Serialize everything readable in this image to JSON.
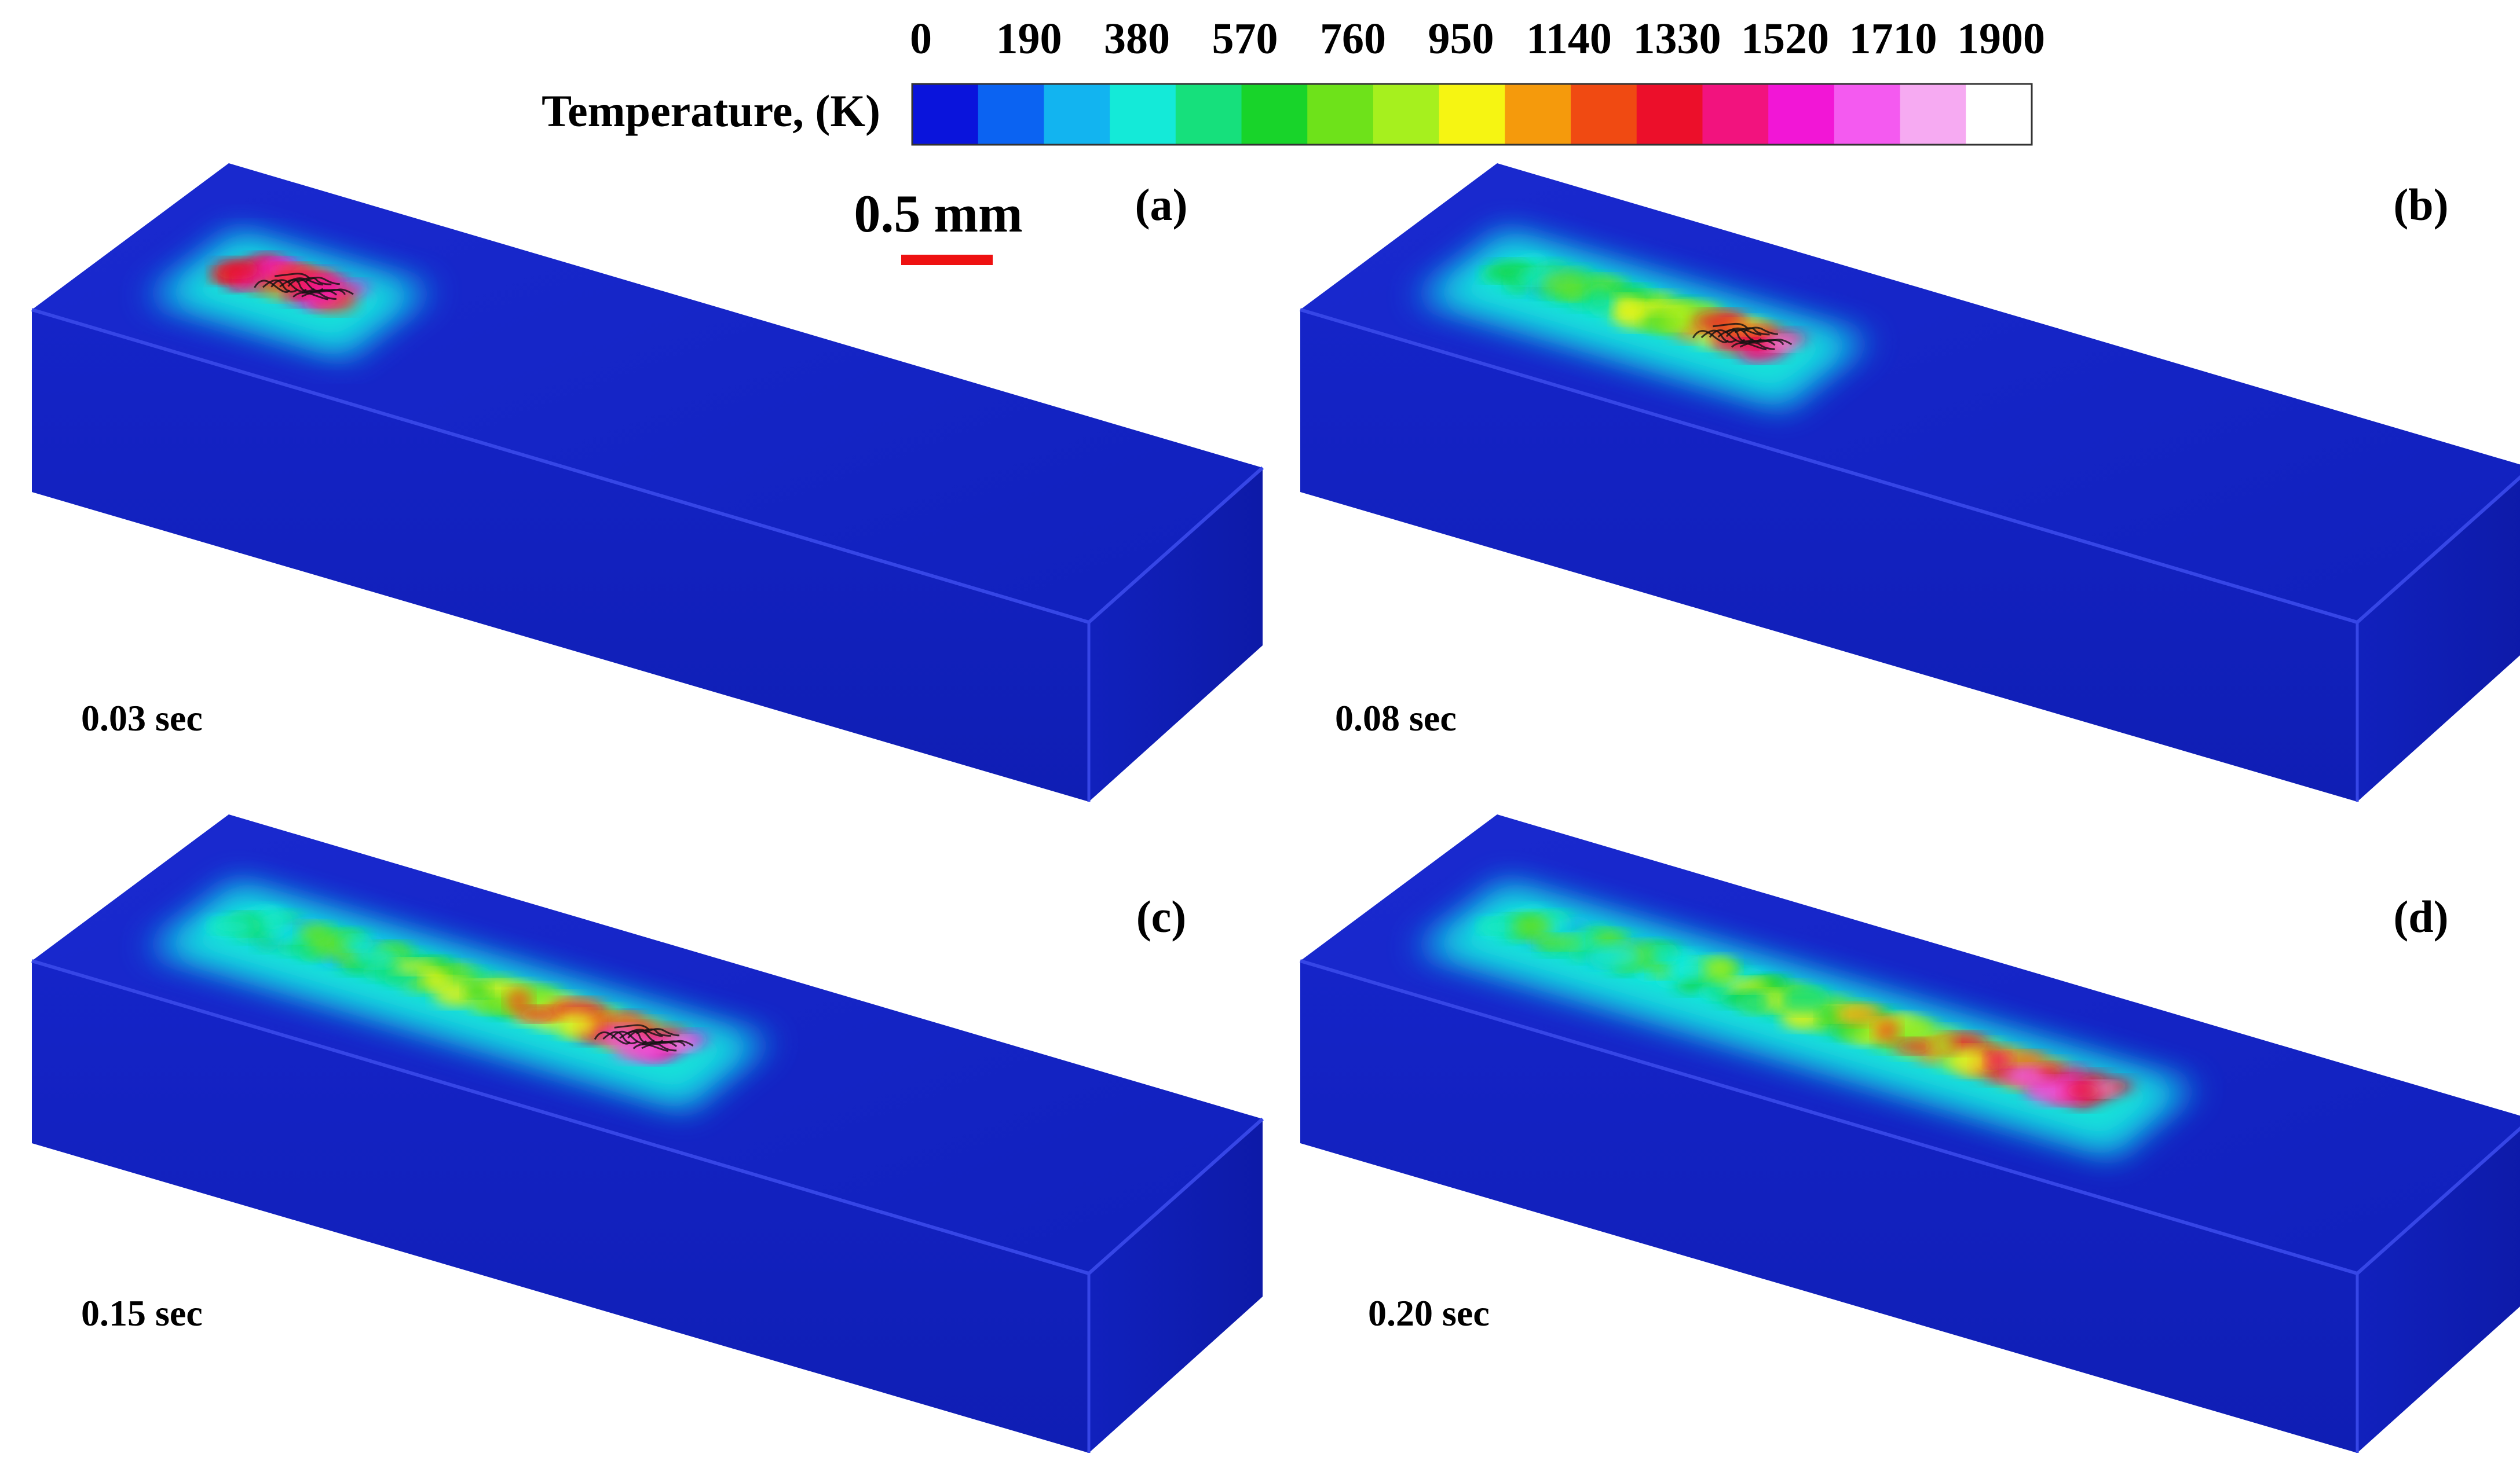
{
  "legend": {
    "title": "Temperature, (K)",
    "tick_labels": [
      "0",
      "190",
      "380",
      "570",
      "760",
      "950",
      "1140",
      "1330",
      "1520",
      "1710",
      "1900"
    ],
    "colors": [
      "#0a14dc",
      "#0b63f2",
      "#12b4f0",
      "#14ead8",
      "#16e07c",
      "#18d42a",
      "#6ee21a",
      "#a6f01e",
      "#f6f512",
      "#f59a0c",
      "#f04a12",
      "#ec0f2a",
      "#f2137e",
      "#f216d6",
      "#f45af0",
      "#f6aaf2",
      "#ffffff"
    ]
  },
  "scale_bar": {
    "label": "0.5 mm",
    "color": "#ee1111"
  },
  "panels": [
    {
      "id": "a",
      "label": "(a)",
      "time": "0.03 sec",
      "track_fraction": 0.18
    },
    {
      "id": "b",
      "label": "(b)",
      "time": "0.08 sec",
      "track_fraction": 0.46
    },
    {
      "id": "c",
      "label": "(c)",
      "time": "0.15 sec",
      "track_fraction": 0.74
    },
    {
      "id": "d",
      "label": "(d)",
      "time": "0.20 sec",
      "track_fraction": 1.0
    }
  ],
  "substrate_color": "#1322c4"
}
